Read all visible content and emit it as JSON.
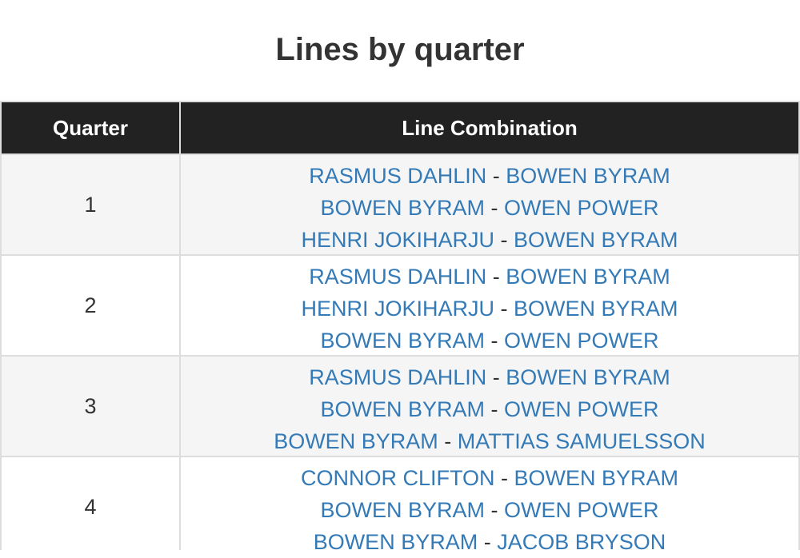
{
  "header": {
    "title": "Lines by quarter"
  },
  "table": {
    "columns": [
      "Quarter",
      "Line Combination"
    ],
    "separator": "-",
    "rows": [
      {
        "quarter": 1,
        "lines": [
          [
            "RASMUS DAHLIN",
            "BOWEN BYRAM"
          ],
          [
            "BOWEN BYRAM",
            "OWEN POWER"
          ],
          [
            "HENRI JOKIHARJU",
            "BOWEN BYRAM"
          ]
        ]
      },
      {
        "quarter": 2,
        "lines": [
          [
            "RASMUS DAHLIN",
            "BOWEN BYRAM"
          ],
          [
            "HENRI JOKIHARJU",
            "BOWEN BYRAM"
          ],
          [
            "BOWEN BYRAM",
            "OWEN POWER"
          ]
        ]
      },
      {
        "quarter": 3,
        "lines": [
          [
            "RASMUS DAHLIN",
            "BOWEN BYRAM"
          ],
          [
            "BOWEN BYRAM",
            "OWEN POWER"
          ],
          [
            "BOWEN BYRAM",
            "MATTIAS SAMUELSSON"
          ]
        ]
      },
      {
        "quarter": 4,
        "lines": [
          [
            "CONNOR CLIFTON",
            "BOWEN BYRAM"
          ],
          [
            "BOWEN BYRAM",
            "OWEN POWER"
          ],
          [
            "BOWEN BYRAM",
            "JACOB BRYSON"
          ]
        ]
      }
    ]
  }
}
